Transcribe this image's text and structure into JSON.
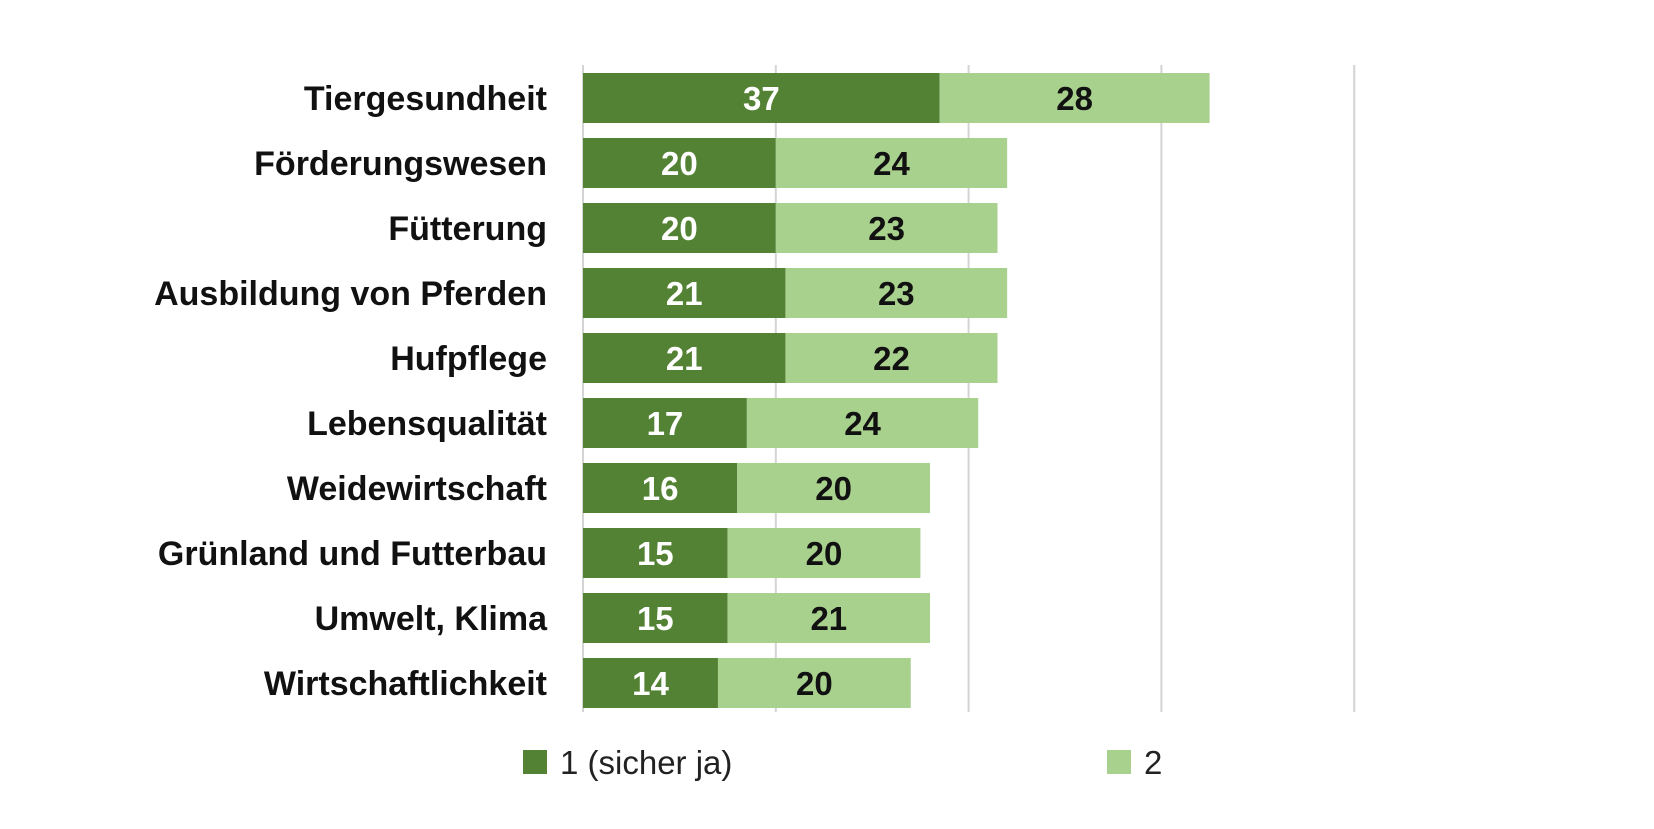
{
  "chart_data": {
    "type": "bar",
    "orientation": "horizontal",
    "stacked": true,
    "title": "",
    "xlabel": "",
    "ylabel": "",
    "xlim": [
      0,
      80
    ],
    "grid": true,
    "legend_position": "bottom",
    "categories": [
      "Tiergesundheit",
      "Förderungswesen",
      "Fütterung",
      "Ausbildung von Pferden",
      "Hufpflege",
      "Lebensqualität",
      "Weidewirtschaft",
      "Grünland und Futterbau",
      "Umwelt, Klima",
      "Wirtschaftlichkeit"
    ],
    "series": [
      {
        "name": "1 (sicher ja)",
        "color": "#548235",
        "label_color": "#ffffff",
        "values": [
          37,
          20,
          20,
          21,
          21,
          17,
          16,
          15,
          15,
          14
        ]
      },
      {
        "name": "2",
        "color": "#a9d18e",
        "label_color": "#111111",
        "values": [
          28,
          24,
          23,
          23,
          22,
          24,
          20,
          20,
          21,
          20
        ]
      }
    ],
    "axis_ticks": [
      0,
      20,
      40,
      60,
      80
    ]
  }
}
